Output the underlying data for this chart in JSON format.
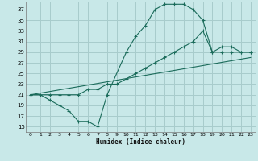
{
  "xlabel": "Humidex (Indice chaleur)",
  "bg_color": "#c8e8e8",
  "grid_color": "#a8cccc",
  "line_color": "#1a6b5a",
  "xlim": [
    -0.5,
    23.5
  ],
  "ylim": [
    14.0,
    38.5
  ],
  "yticks": [
    15,
    17,
    19,
    21,
    23,
    25,
    27,
    29,
    31,
    33,
    35,
    37
  ],
  "xticks": [
    0,
    1,
    2,
    3,
    4,
    5,
    6,
    7,
    8,
    9,
    10,
    11,
    12,
    13,
    14,
    15,
    16,
    17,
    18,
    19,
    20,
    21,
    22,
    23
  ],
  "line1_x": [
    0,
    1,
    2,
    3,
    4,
    5,
    6,
    7,
    8,
    10,
    11,
    12,
    13,
    14,
    15,
    16,
    17,
    18,
    19,
    20,
    21,
    22,
    23
  ],
  "line1_y": [
    21,
    21,
    20,
    19,
    18,
    16,
    16,
    15,
    21,
    29,
    32,
    34,
    37,
    38,
    38,
    38,
    37,
    35,
    29,
    29,
    29,
    29,
    29
  ],
  "line2_x": [
    0,
    2,
    3,
    4,
    5,
    6,
    7,
    8,
    9,
    10,
    11,
    12,
    13,
    14,
    15,
    16,
    17,
    18,
    19,
    20,
    21,
    22,
    23
  ],
  "line2_y": [
    21,
    21,
    21,
    21,
    21,
    22,
    22,
    23,
    23,
    24,
    25,
    26,
    27,
    28,
    29,
    30,
    31,
    33,
    29,
    30,
    30,
    29,
    29
  ],
  "line3_x": [
    0,
    23
  ],
  "line3_y": [
    21,
    28
  ]
}
